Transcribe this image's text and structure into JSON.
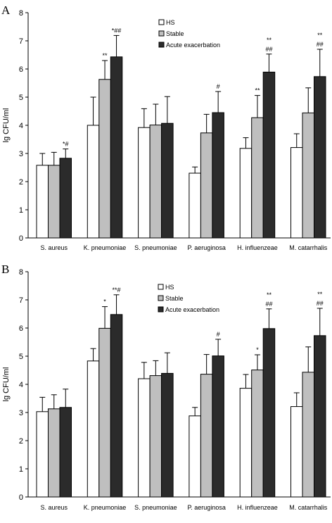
{
  "chart_data": [
    {
      "panel": "A",
      "type": "bar",
      "ylabel": "lg CFU/ml",
      "ylim": [
        0,
        8
      ],
      "yticks": [
        "0",
        "1",
        "2",
        "3",
        "4",
        "5",
        "6",
        "7",
        "8"
      ],
      "categories": [
        "S. aureus",
        "K. pneumoniae",
        "S. pneumoniae",
        "P. aeruginosa",
        "H. influenzeae",
        "M. catarrhalis"
      ],
      "legend_position": "top-center",
      "series": [
        {
          "name": "HS",
          "color": "#ffffff",
          "values": [
            2.58,
            4.0,
            3.92,
            2.3,
            3.18,
            3.21
          ],
          "errors": [
            0.42,
            1.0,
            0.67,
            0.22,
            0.38,
            0.49
          ]
        },
        {
          "name": "Stable",
          "color": "#bfbfbf",
          "values": [
            2.58,
            5.63,
            4.01,
            3.73,
            4.27,
            4.44
          ],
          "errors": [
            0.46,
            0.67,
            0.74,
            0.66,
            0.79,
            0.89
          ]
        },
        {
          "name": "Acute exacerbation",
          "color": "#2b2b2b",
          "values": [
            2.83,
            6.43,
            4.07,
            4.45,
            5.89,
            5.73
          ],
          "errors": [
            0.33,
            0.76,
            0.95,
            0.75,
            0.64,
            0.97
          ]
        }
      ],
      "annotations": [
        {
          "category": 0,
          "series": 2,
          "lines": [
            "*#"
          ]
        },
        {
          "category": 1,
          "series": 1,
          "lines": [
            "**"
          ]
        },
        {
          "category": 1,
          "series": 2,
          "lines": [
            "*##"
          ]
        },
        {
          "category": 3,
          "series": 2,
          "lines": [
            "#"
          ]
        },
        {
          "category": 4,
          "series": 1,
          "lines": [
            "**"
          ]
        },
        {
          "category": 4,
          "series": 2,
          "lines": [
            "**",
            "##"
          ]
        },
        {
          "category": 5,
          "series": 2,
          "lines": [
            "**",
            "##"
          ]
        }
      ]
    },
    {
      "panel": "B",
      "type": "bar",
      "ylabel": "lg CFU/ml",
      "ylim": [
        0,
        8
      ],
      "yticks": [
        "0",
        "1",
        "2",
        "3",
        "4",
        "5",
        "6",
        "7",
        "8"
      ],
      "categories": [
        "S. aureus",
        "K. pneumoniae",
        "S. pneumoniae",
        "P. aeruginosa",
        "H. influenzeae",
        "M. catarrhalis"
      ],
      "legend_position": "top-center",
      "series": [
        {
          "name": "HS",
          "color": "#ffffff",
          "values": [
            3.03,
            4.83,
            4.2,
            2.88,
            3.86,
            3.21
          ],
          "errors": [
            0.51,
            0.44,
            0.58,
            0.3,
            0.49,
            0.49
          ]
        },
        {
          "name": "Stable",
          "color": "#bfbfbf",
          "values": [
            3.13,
            5.99,
            4.31,
            4.36,
            4.51,
            4.43
          ],
          "errors": [
            0.5,
            0.77,
            0.53,
            0.7,
            0.54,
            0.9
          ]
        },
        {
          "name": "Acute exacerbation",
          "color": "#2b2b2b",
          "values": [
            3.18,
            6.48,
            4.39,
            5.01,
            5.98,
            5.73
          ],
          "errors": [
            0.65,
            0.7,
            0.73,
            0.59,
            0.7,
            0.97
          ]
        }
      ],
      "annotations": [
        {
          "category": 1,
          "series": 1,
          "lines": [
            "*"
          ]
        },
        {
          "category": 1,
          "series": 2,
          "lines": [
            "**#"
          ]
        },
        {
          "category": 3,
          "series": 2,
          "lines": [
            "#"
          ]
        },
        {
          "category": 4,
          "series": 1,
          "lines": [
            "*"
          ]
        },
        {
          "category": 4,
          "series": 2,
          "lines": [
            "**",
            "##"
          ]
        },
        {
          "category": 5,
          "series": 2,
          "lines": [
            "**",
            "##"
          ]
        }
      ]
    }
  ]
}
